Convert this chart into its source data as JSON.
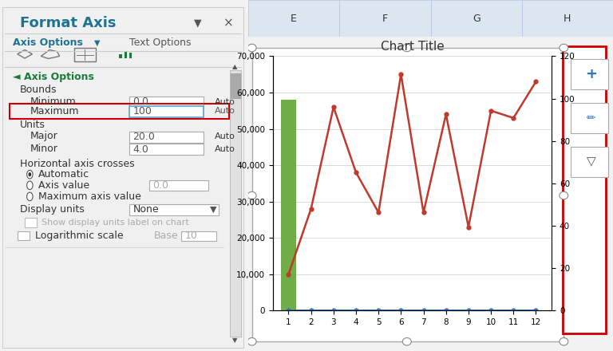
{
  "title": "Chart Title",
  "x_data": [
    1,
    2,
    3,
    4,
    5,
    6,
    7,
    8,
    9,
    10,
    11,
    12
  ],
  "sales_data": [
    10000,
    28000,
    56000,
    38000,
    27000,
    65000,
    27000,
    54000,
    23000,
    55000,
    53000,
    63000
  ],
  "sales_period_data": [
    0,
    0,
    0,
    0,
    0,
    0,
    0,
    0,
    0,
    0,
    0,
    0
  ],
  "vertical_line_data": [
    58000,
    0,
    0,
    0,
    0,
    0,
    0,
    0,
    0,
    0,
    0,
    0
  ],
  "left_yaxis_ticks": [
    0,
    10000,
    20000,
    30000,
    40000,
    50000,
    60000,
    70000
  ],
  "right_yaxis_ticks": [
    0,
    20,
    40,
    60,
    80,
    100,
    120
  ],
  "sales_color": "#c0392b",
  "sales_period_color": "#2e75b6",
  "vertical_line_color": "#70ad47",
  "panel_bg": "#f0f0f0",
  "panel_title_color": "#1f7391",
  "axis_options_color": "#1a7a3c",
  "grid_color": "#d9d9d9",
  "highlight_red": "#cc0000",
  "excel_header_bg": "#dce6f1"
}
